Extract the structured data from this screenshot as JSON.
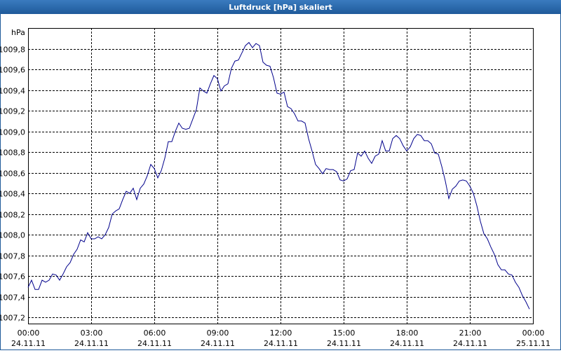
{
  "chart_data": {
    "type": "line",
    "title": "Luftdruck [hPa] skaliert",
    "y_label": "hPa",
    "x": [
      0,
      10,
      20,
      30,
      40,
      50,
      60,
      70,
      80,
      90,
      100,
      110,
      120,
      130,
      140,
      150,
      160,
      170,
      180,
      190,
      200,
      210,
      220,
      230,
      240,
      250,
      260,
      270,
      280,
      290,
      300,
      310,
      320,
      330,
      340,
      350,
      360,
      370,
      380,
      390,
      400,
      410,
      420,
      430,
      440,
      450,
      460,
      470,
      480,
      490,
      500,
      510,
      520,
      530,
      540,
      550,
      560,
      570,
      580,
      590,
      600,
      610,
      620,
      630,
      640,
      650,
      660,
      670,
      680,
      690,
      700,
      710,
      720,
      730,
      740,
      750,
      760,
      770,
      780,
      790,
      800,
      810,
      820,
      830,
      840,
      850,
      860,
      870,
      880,
      890,
      900,
      910,
      920,
      930,
      940,
      950,
      960,
      970,
      980,
      990,
      1000,
      1010,
      1020,
      1030,
      1040,
      1050,
      1060,
      1070,
      1080,
      1090,
      1100,
      1110,
      1120,
      1130,
      1140,
      1150,
      1160,
      1170,
      1180,
      1190,
      1200,
      1210,
      1220,
      1230,
      1240,
      1250,
      1260,
      1270,
      1280,
      1290,
      1300,
      1310,
      1320,
      1330,
      1340,
      1350,
      1360,
      1370,
      1380,
      1390,
      1400,
      1410,
      1420,
      1430
    ],
    "series": [
      {
        "color": "#00008b",
        "values": [
          1007.49,
          1007.56,
          1007.47,
          1007.47,
          1007.56,
          1007.54,
          1007.56,
          1007.62,
          1007.61,
          1007.56,
          1007.62,
          1007.69,
          1007.73,
          1007.81,
          1007.86,
          1007.95,
          1007.93,
          1008.02,
          1007.96,
          1007.96,
          1007.98,
          1007.96,
          1008.0,
          1008.07,
          1008.2,
          1008.23,
          1008.25,
          1008.34,
          1008.42,
          1008.4,
          1008.45,
          1008.34,
          1008.45,
          1008.49,
          1008.57,
          1008.68,
          1008.64,
          1008.55,
          1008.62,
          1008.74,
          1008.9,
          1008.9,
          1009.0,
          1009.08,
          1009.03,
          1009.02,
          1009.03,
          1009.12,
          1009.21,
          1009.42,
          1009.39,
          1009.37,
          1009.46,
          1009.54,
          1009.51,
          1009.39,
          1009.44,
          1009.46,
          1009.61,
          1009.68,
          1009.69,
          1009.76,
          1009.83,
          1009.86,
          1009.81,
          1009.85,
          1009.83,
          1009.67,
          1009.64,
          1009.63,
          1009.52,
          1009.37,
          1009.36,
          1009.38,
          1009.24,
          1009.22,
          1009.17,
          1009.1,
          1009.1,
          1009.08,
          1008.93,
          1008.81,
          1008.68,
          1008.64,
          1008.59,
          1008.64,
          1008.63,
          1008.63,
          1008.61,
          1008.53,
          1008.52,
          1008.54,
          1008.62,
          1008.63,
          1008.79,
          1008.76,
          1008.81,
          1008.74,
          1008.69,
          1008.76,
          1008.78,
          1008.91,
          1008.81,
          1008.81,
          1008.93,
          1008.96,
          1008.93,
          1008.86,
          1008.81,
          1008.85,
          1008.93,
          1008.97,
          1008.96,
          1008.91,
          1008.91,
          1008.88,
          1008.79,
          1008.78,
          1008.66,
          1008.52,
          1008.35,
          1008.44,
          1008.47,
          1008.52,
          1008.53,
          1008.52,
          1008.47,
          1008.4,
          1008.28,
          1008.13,
          1008.01,
          1007.96,
          1007.88,
          1007.81,
          1007.71,
          1007.66,
          1007.66,
          1007.62,
          1007.61,
          1007.54,
          1007.49,
          1007.41,
          1007.35,
          1007.28
        ]
      }
    ],
    "xlim": [
      0,
      1440
    ],
    "xticks": [
      {
        "value": 0,
        "label": "00:00 24.11.11"
      },
      {
        "value": 180,
        "label": "03:00 24.11.11"
      },
      {
        "value": 360,
        "label": "06:00 24.11.11"
      },
      {
        "value": 540,
        "label": "09:00 24.11.11"
      },
      {
        "value": 720,
        "label": "12:00 24.11.11"
      },
      {
        "value": 900,
        "label": "15:00 24.11.11"
      },
      {
        "value": 1080,
        "label": "18:00 24.11.11"
      },
      {
        "value": 1260,
        "label": "21:00 24.11.11"
      },
      {
        "value": 1440,
        "label": "00:00 25.11.11"
      }
    ],
    "ylim": [
      1007.14,
      1010.0
    ],
    "yticks": [
      {
        "value": 1007.2,
        "label": "1007,2"
      },
      {
        "value": 1007.4,
        "label": "1007,4"
      },
      {
        "value": 1007.6,
        "label": "1007,6"
      },
      {
        "value": 1007.8,
        "label": "1007,8"
      },
      {
        "value": 1008.0,
        "label": "1008,0"
      },
      {
        "value": 1008.2,
        "label": "1008,2"
      },
      {
        "value": 1008.4,
        "label": "1008,4"
      },
      {
        "value": 1008.6,
        "label": "1008,6"
      },
      {
        "value": 1008.8,
        "label": "1008,8"
      },
      {
        "value": 1009.0,
        "label": "1009,0"
      },
      {
        "value": 1009.2,
        "label": "1009,2"
      },
      {
        "value": 1009.4,
        "label": "1009,4"
      },
      {
        "value": 1009.6,
        "label": "1009,6"
      },
      {
        "value": 1009.8,
        "label": "1009,8"
      }
    ],
    "grid": true
  }
}
